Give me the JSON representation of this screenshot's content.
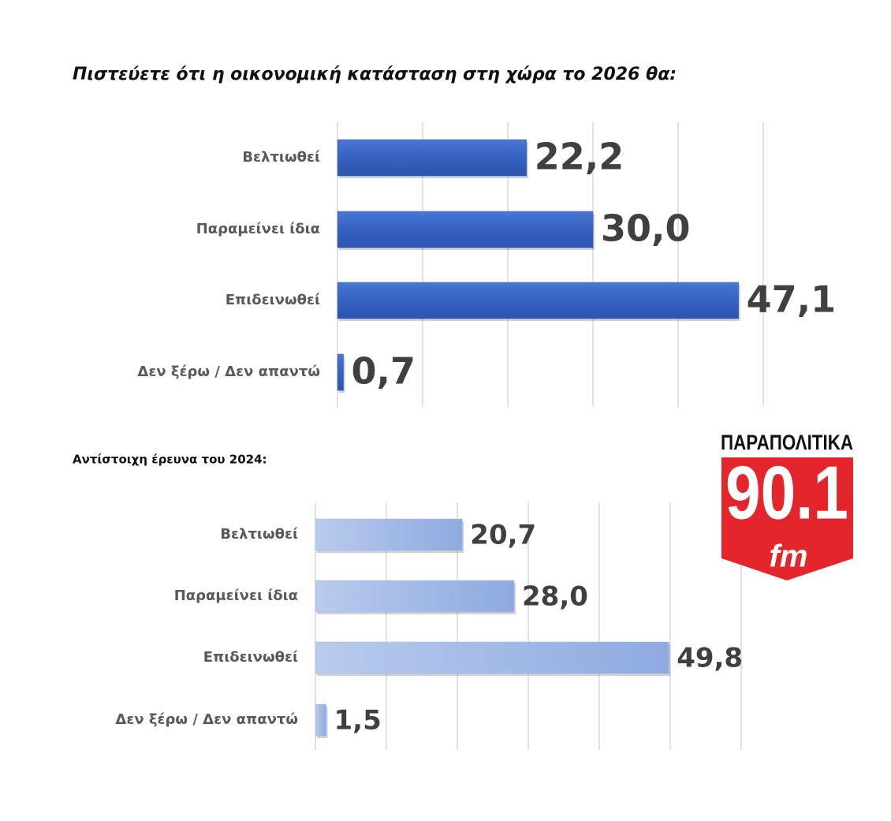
{
  "chart_data": [
    {
      "type": "bar",
      "orientation": "horizontal",
      "title": "Πιστεύετε ότι η οικονομική κατάσταση στη χώρα το 2026 θα:",
      "categories": [
        "Βελτιωθεί",
        "Παραμείνει ίδια",
        "Επιδεινωθεί",
        "Δεν ξέρω / Δεν απαντώ"
      ],
      "values": [
        22.2,
        30.0,
        47.1,
        0.7
      ],
      "value_labels": [
        "22,2",
        "30,0",
        "47,1",
        "0,7"
      ],
      "color": "#3b67c6",
      "xlim": [
        0,
        50
      ],
      "xticks": [
        0,
        10,
        20,
        30,
        40,
        50
      ],
      "grid": true
    },
    {
      "type": "bar",
      "orientation": "horizontal",
      "title": "Αντίστοιχη έρευνα του 2024:",
      "categories": [
        "Βελτιωθεί",
        "Παραμείνει ίδια",
        "Επιδεινωθεί",
        "Δεν ξέρω / Δεν απαντώ"
      ],
      "values": [
        20.7,
        28.0,
        49.8,
        1.5
      ],
      "value_labels": [
        "20,7",
        "28,0",
        "49,8",
        "1,5"
      ],
      "color": "#a3b9e6",
      "xlim": [
        0,
        60
      ],
      "xticks": [
        0,
        10,
        20,
        30,
        40,
        50,
        60
      ],
      "grid": true
    }
  ],
  "logo": {
    "name": "ΠΑΡΑΠΟΛΙΤΙΚΑ",
    "frequency": "90.1",
    "band": "fm"
  }
}
